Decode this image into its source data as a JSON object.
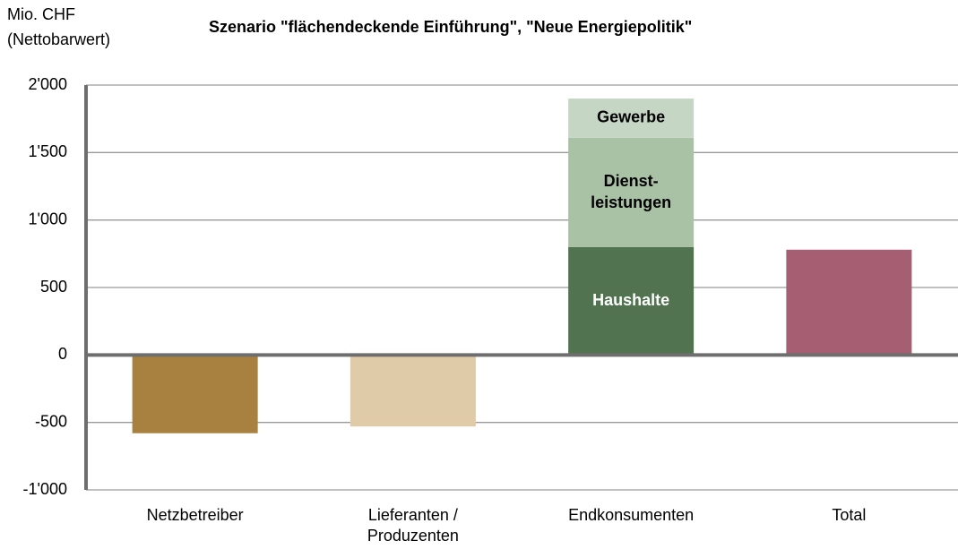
{
  "chart_data": {
    "type": "bar",
    "title": "Szenario \"flächendeckende Einführung\", \"Neue Energiepolitik\"",
    "y_label": "Mio. CHF\n(Nettobarwert)",
    "categories": [
      "Netzbetreiber",
      "Lieferanten /\nProduzenten",
      "Endkonsumenten",
      "Total"
    ],
    "values": [
      -580,
      -530,
      null,
      780
    ],
    "colors": [
      "#a88040",
      "#dfcba8",
      null,
      "#a65e72"
    ],
    "stack": {
      "category": 2,
      "segments": [
        {
          "name": "Haushalte",
          "value": 800,
          "color": "#527350",
          "label_color": "#ffffff"
        },
        {
          "name": "Dienst-\nleistungen",
          "value": 810,
          "color": "#a9c1a5",
          "label_color": "#000000"
        },
        {
          "name": "Gewerbe",
          "value": 290,
          "color": "#c6d6c4",
          "label_color": "#000000"
        }
      ]
    },
    "ylim": [
      -1000,
      2000
    ],
    "yticks": [
      {
        "value": 2000,
        "label": "2'000"
      },
      {
        "value": 1500,
        "label": "1'500"
      },
      {
        "value": 1000,
        "label": "1'000"
      },
      500,
      0,
      -500,
      {
        "value": -1000,
        "label": "-1'000"
      }
    ],
    "grid": true
  }
}
